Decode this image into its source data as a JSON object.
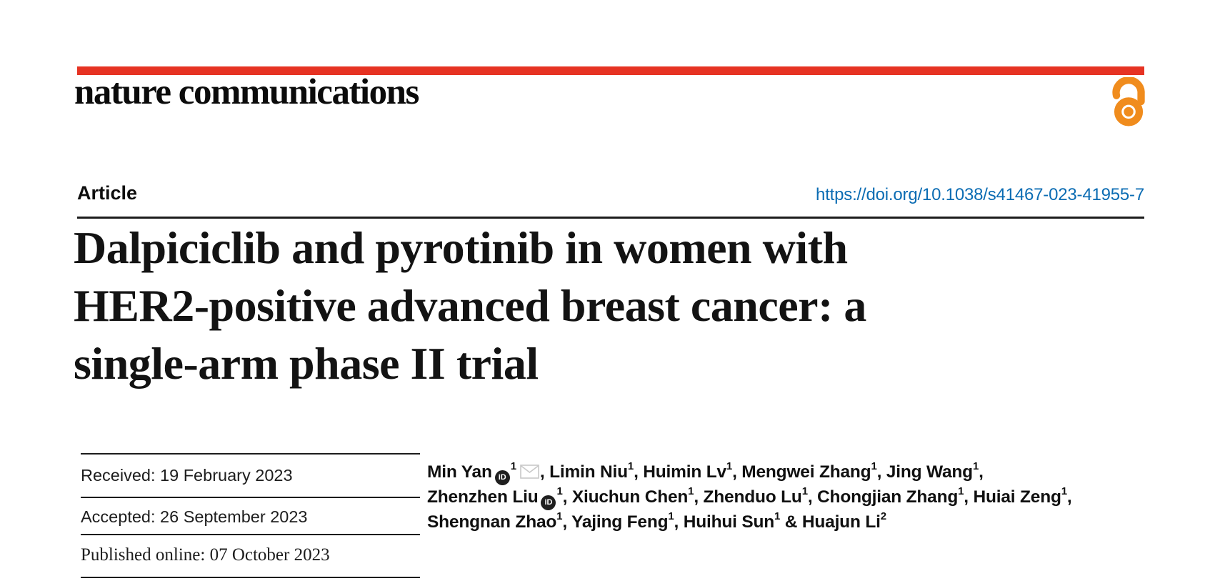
{
  "journal": {
    "name": "nature communications"
  },
  "article_label": "Article",
  "doi": "https://doi.org/10.1038/s41467-023-41955-7",
  "title": {
    "lines": [
      "Dalpiciclib and pyrotinib in women with",
      "HER2-positive advanced breast cancer: a",
      "single-arm phase II trial"
    ]
  },
  "dates": {
    "received": {
      "label": "Received:",
      "value": "19 February 2023"
    },
    "accepted": {
      "label": "Accepted:",
      "value": "26 September 2023"
    },
    "published": {
      "label": "Published online:",
      "value": "07 October 2023"
    }
  },
  "authors": {
    "lines": [
      [
        {
          "text": "Min Yan"
        },
        {
          "icon": "orcid"
        },
        {
          "sup": "1"
        },
        {
          "icon": "envelope"
        },
        {
          "text": ", Limin Niu"
        },
        {
          "sup": "1"
        },
        {
          "text": ", Huimin Lv"
        },
        {
          "sup": "1"
        },
        {
          "text": ", Mengwei Zhang"
        },
        {
          "sup": "1"
        },
        {
          "text": ", Jing Wang"
        },
        {
          "sup": "1"
        },
        {
          "text": ","
        }
      ],
      [
        {
          "text": "Zhenzhen Liu"
        },
        {
          "icon": "orcid"
        },
        {
          "sup": "1"
        },
        {
          "text": ", Xiuchun Chen"
        },
        {
          "sup": "1"
        },
        {
          "text": ", Zhenduo Lu"
        },
        {
          "sup": "1"
        },
        {
          "text": ", Chongjian Zhang"
        },
        {
          "sup": "1"
        },
        {
          "text": ", Huiai Zeng"
        },
        {
          "sup": "1"
        },
        {
          "text": ","
        }
      ],
      [
        {
          "text": "Shengnan Zhao"
        },
        {
          "sup": "1"
        },
        {
          "text": ", Yajing Feng"
        },
        {
          "sup": "1"
        },
        {
          "text": ", Huihui Sun"
        },
        {
          "sup": "1"
        },
        {
          "text": " & Huajun Li"
        },
        {
          "sup": "2"
        }
      ]
    ]
  },
  "icons": {
    "orcid_label": "iD",
    "orcid": "orcid-id-icon",
    "envelope": "email-envelope-icon",
    "open_access": "open-access-lock-icon"
  },
  "colors": {
    "brand_red": "#e63323",
    "link_blue": "#0b6cb3",
    "oa_orange": "#f08c1d",
    "envelope_gray": "#c8c8c8",
    "ink": "#141414"
  }
}
